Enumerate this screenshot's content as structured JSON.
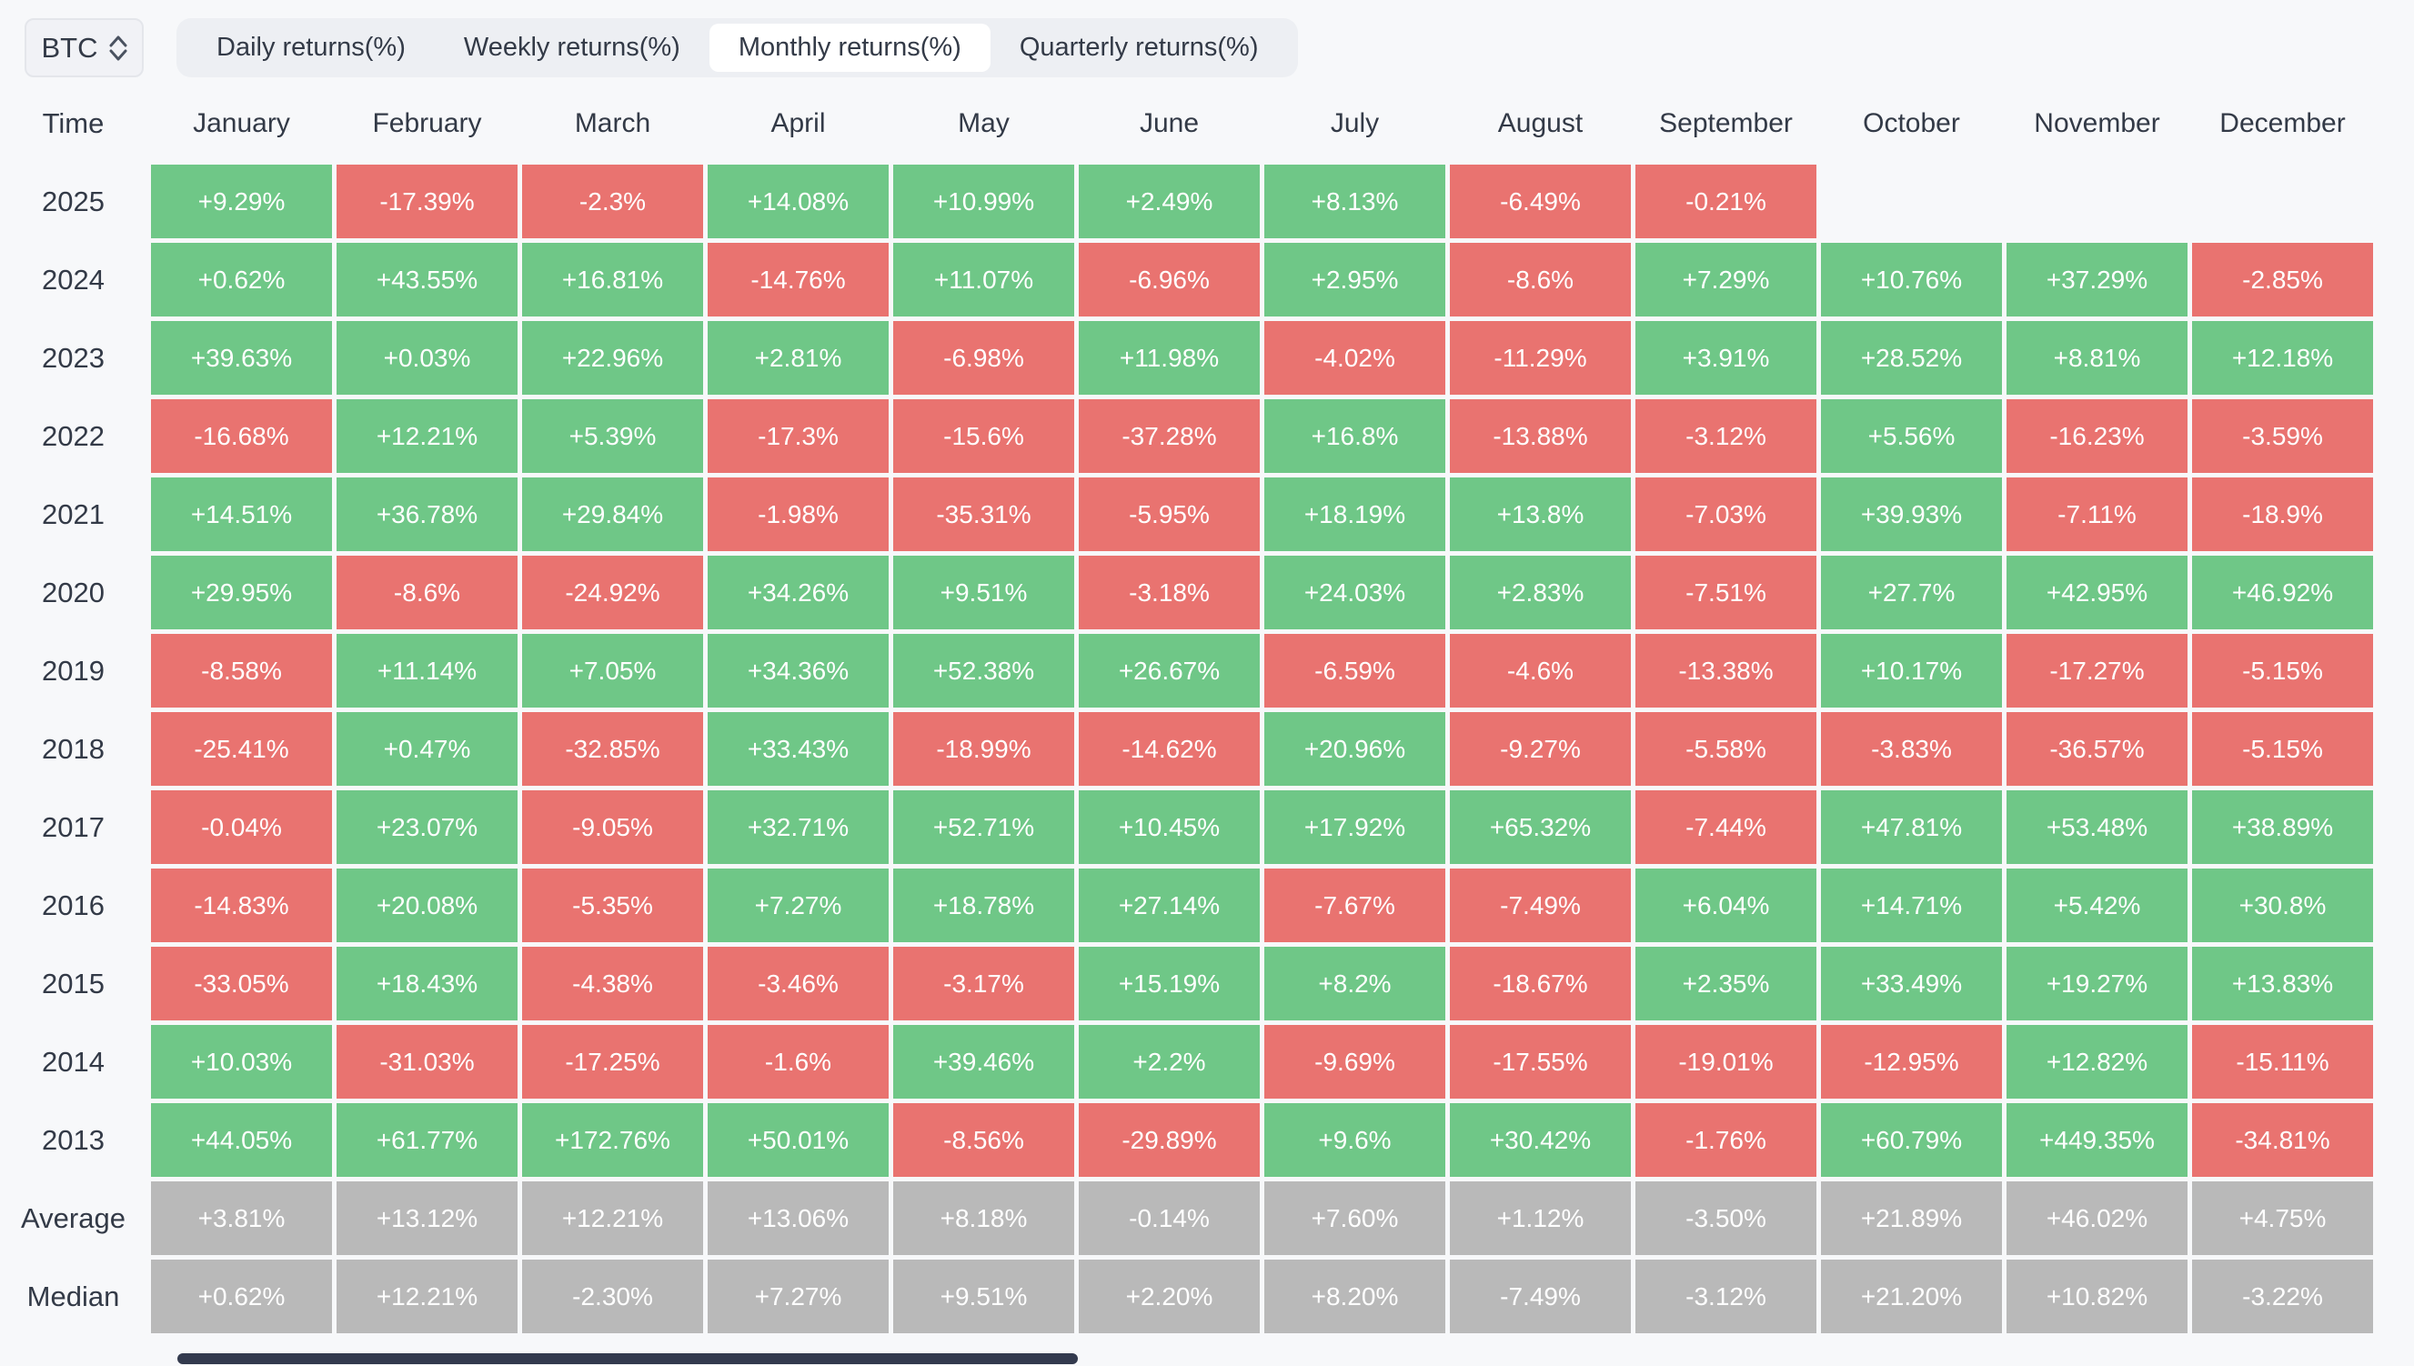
{
  "colors": {
    "page_bg": "#f7f8fa",
    "positive": "#6fc787",
    "negative": "#e97370",
    "summary": "#b9b9b9",
    "text_dark": "#333a47",
    "tab_group_bg": "#edeff3",
    "active_tab_bg": "#ffffff",
    "scrollbar": "#333a4e"
  },
  "toolbar": {
    "symbol": "BTC",
    "symbol_icon": "updown-chevron-icon",
    "tabs": [
      {
        "label": "Daily returns(%)",
        "active": false
      },
      {
        "label": "Weekly returns(%)",
        "active": false
      },
      {
        "label": "Monthly returns(%)",
        "active": true
      },
      {
        "label": "Quarterly returns(%)",
        "active": false
      }
    ]
  },
  "table": {
    "corner_header": "Time",
    "month_headers": [
      "January",
      "February",
      "March",
      "April",
      "May",
      "June",
      "July",
      "August",
      "September",
      "October",
      "November",
      "December"
    ],
    "rows": [
      {
        "label": "2025",
        "kind": "year",
        "values": [
          "+9.29%",
          "-17.39%",
          "-2.3%",
          "+14.08%",
          "+10.99%",
          "+2.49%",
          "+8.13%",
          "-6.49%",
          "-0.21%",
          "",
          "",
          ""
        ]
      },
      {
        "label": "2024",
        "kind": "year",
        "values": [
          "+0.62%",
          "+43.55%",
          "+16.81%",
          "-14.76%",
          "+11.07%",
          "-6.96%",
          "+2.95%",
          "-8.6%",
          "+7.29%",
          "+10.76%",
          "+37.29%",
          "-2.85%"
        ]
      },
      {
        "label": "2023",
        "kind": "year",
        "values": [
          "+39.63%",
          "+0.03%",
          "+22.96%",
          "+2.81%",
          "-6.98%",
          "+11.98%",
          "-4.02%",
          "-11.29%",
          "+3.91%",
          "+28.52%",
          "+8.81%",
          "+12.18%"
        ]
      },
      {
        "label": "2022",
        "kind": "year",
        "values": [
          "-16.68%",
          "+12.21%",
          "+5.39%",
          "-17.3%",
          "-15.6%",
          "-37.28%",
          "+16.8%",
          "-13.88%",
          "-3.12%",
          "+5.56%",
          "-16.23%",
          "-3.59%"
        ]
      },
      {
        "label": "2021",
        "kind": "year",
        "values": [
          "+14.51%",
          "+36.78%",
          "+29.84%",
          "-1.98%",
          "-35.31%",
          "-5.95%",
          "+18.19%",
          "+13.8%",
          "-7.03%",
          "+39.93%",
          "-7.11%",
          "-18.9%"
        ]
      },
      {
        "label": "2020",
        "kind": "year",
        "values": [
          "+29.95%",
          "-8.6%",
          "-24.92%",
          "+34.26%",
          "+9.51%",
          "-3.18%",
          "+24.03%",
          "+2.83%",
          "-7.51%",
          "+27.7%",
          "+42.95%",
          "+46.92%"
        ]
      },
      {
        "label": "2019",
        "kind": "year",
        "values": [
          "-8.58%",
          "+11.14%",
          "+7.05%",
          "+34.36%",
          "+52.38%",
          "+26.67%",
          "-6.59%",
          "-4.6%",
          "-13.38%",
          "+10.17%",
          "-17.27%",
          "-5.15%"
        ]
      },
      {
        "label": "2018",
        "kind": "year",
        "values": [
          "-25.41%",
          "+0.47%",
          "-32.85%",
          "+33.43%",
          "-18.99%",
          "-14.62%",
          "+20.96%",
          "-9.27%",
          "-5.58%",
          "-3.83%",
          "-36.57%",
          "-5.15%"
        ]
      },
      {
        "label": "2017",
        "kind": "year",
        "values": [
          "-0.04%",
          "+23.07%",
          "-9.05%",
          "+32.71%",
          "+52.71%",
          "+10.45%",
          "+17.92%",
          "+65.32%",
          "-7.44%",
          "+47.81%",
          "+53.48%",
          "+38.89%"
        ]
      },
      {
        "label": "2016",
        "kind": "year",
        "values": [
          "-14.83%",
          "+20.08%",
          "-5.35%",
          "+7.27%",
          "+18.78%",
          "+27.14%",
          "-7.67%",
          "-7.49%",
          "+6.04%",
          "+14.71%",
          "+5.42%",
          "+30.8%"
        ]
      },
      {
        "label": "2015",
        "kind": "year",
        "values": [
          "-33.05%",
          "+18.43%",
          "-4.38%",
          "-3.46%",
          "-3.17%",
          "+15.19%",
          "+8.2%",
          "-18.67%",
          "+2.35%",
          "+33.49%",
          "+19.27%",
          "+13.83%"
        ]
      },
      {
        "label": "2014",
        "kind": "year",
        "values": [
          "+10.03%",
          "-31.03%",
          "-17.25%",
          "-1.6%",
          "+39.46%",
          "+2.2%",
          "-9.69%",
          "-17.55%",
          "-19.01%",
          "-12.95%",
          "+12.82%",
          "-15.11%"
        ]
      },
      {
        "label": "2013",
        "kind": "year",
        "values": [
          "+44.05%",
          "+61.77%",
          "+172.76%",
          "+50.01%",
          "-8.56%",
          "-29.89%",
          "+9.6%",
          "+30.42%",
          "-1.76%",
          "+60.79%",
          "+449.35%",
          "-34.81%"
        ]
      },
      {
        "label": "Average",
        "kind": "summary",
        "values": [
          "+3.81%",
          "+13.12%",
          "+12.21%",
          "+13.06%",
          "+8.18%",
          "-0.14%",
          "+7.60%",
          "+1.12%",
          "-3.50%",
          "+21.89%",
          "+46.02%",
          "+4.75%"
        ]
      },
      {
        "label": "Median",
        "kind": "summary",
        "values": [
          "+0.62%",
          "+12.21%",
          "-2.30%",
          "+7.27%",
          "+9.51%",
          "+2.20%",
          "+8.20%",
          "-7.49%",
          "-3.12%",
          "+21.20%",
          "+10.82%",
          "-3.22%"
        ]
      }
    ]
  }
}
